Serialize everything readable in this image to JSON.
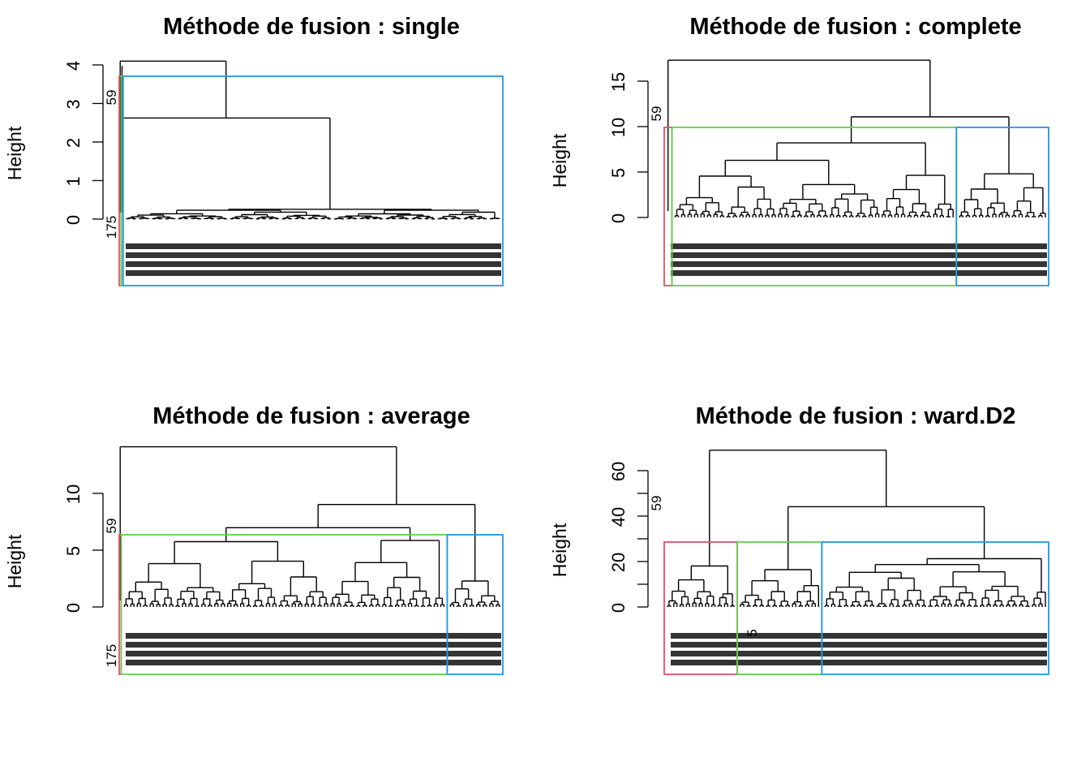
{
  "colors": {
    "cluster_red": "#DF536B",
    "cluster_green": "#61D04F",
    "cluster_blue": "#2297E6",
    "axis": "#000000"
  },
  "chart_data": [
    {
      "type": "dendrogram",
      "title": "Méthode de fusion : single",
      "ylabel": "Height",
      "yticks": [
        0,
        1,
        2,
        3,
        4
      ],
      "ylim": [
        0,
        4.1
      ],
      "root_height": 4.1,
      "leaf_labels": [
        "59",
        "175"
      ],
      "clusters": [
        {
          "color": "cluster_red",
          "size_fraction": 0.005
        },
        {
          "color": "cluster_green",
          "size_fraction": 0.005
        },
        {
          "color": "cluster_blue",
          "size_fraction": 0.99
        }
      ]
    },
    {
      "type": "dendrogram",
      "title": "Méthode de fusion : complete",
      "ylabel": "Height",
      "yticks": [
        0,
        5,
        10,
        15
      ],
      "ylim": [
        0,
        17.4
      ],
      "root_height": 17.3,
      "leaf_labels": [
        "59"
      ],
      "clusters": [
        {
          "color": "cluster_red",
          "size_fraction": 0.02
        },
        {
          "color": "cluster_green",
          "size_fraction": 0.74
        },
        {
          "color": "cluster_blue",
          "size_fraction": 0.24
        }
      ]
    },
    {
      "type": "dendrogram",
      "title": "Méthode de fusion : average",
      "ylabel": "Height",
      "yticks": [
        0,
        5,
        10
      ],
      "ylim": [
        0,
        14.2
      ],
      "root_height": 14.1,
      "leaf_labels": [
        "59",
        "175"
      ],
      "clusters": [
        {
          "color": "cluster_red",
          "size_fraction": 0.005
        },
        {
          "color": "cluster_green",
          "size_fraction": 0.85
        },
        {
          "color": "cluster_blue",
          "size_fraction": 0.145
        }
      ]
    },
    {
      "type": "dendrogram",
      "title": "Méthode de fusion : ward.D2",
      "ylabel": "Height",
      "yticks": [
        0,
        10,
        20,
        30,
        40,
        50,
        60
      ],
      "ytick_labels": [
        "0",
        "",
        "20",
        "",
        "40",
        "",
        "60"
      ],
      "ylim": [
        0,
        70
      ],
      "root_height": 69,
      "leaf_labels": [
        "59",
        "5"
      ],
      "clusters": [
        {
          "color": "cluster_red",
          "size_fraction": 0.19
        },
        {
          "color": "cluster_green",
          "size_fraction": 0.22
        },
        {
          "color": "cluster_blue",
          "size_fraction": 0.59
        }
      ]
    }
  ]
}
